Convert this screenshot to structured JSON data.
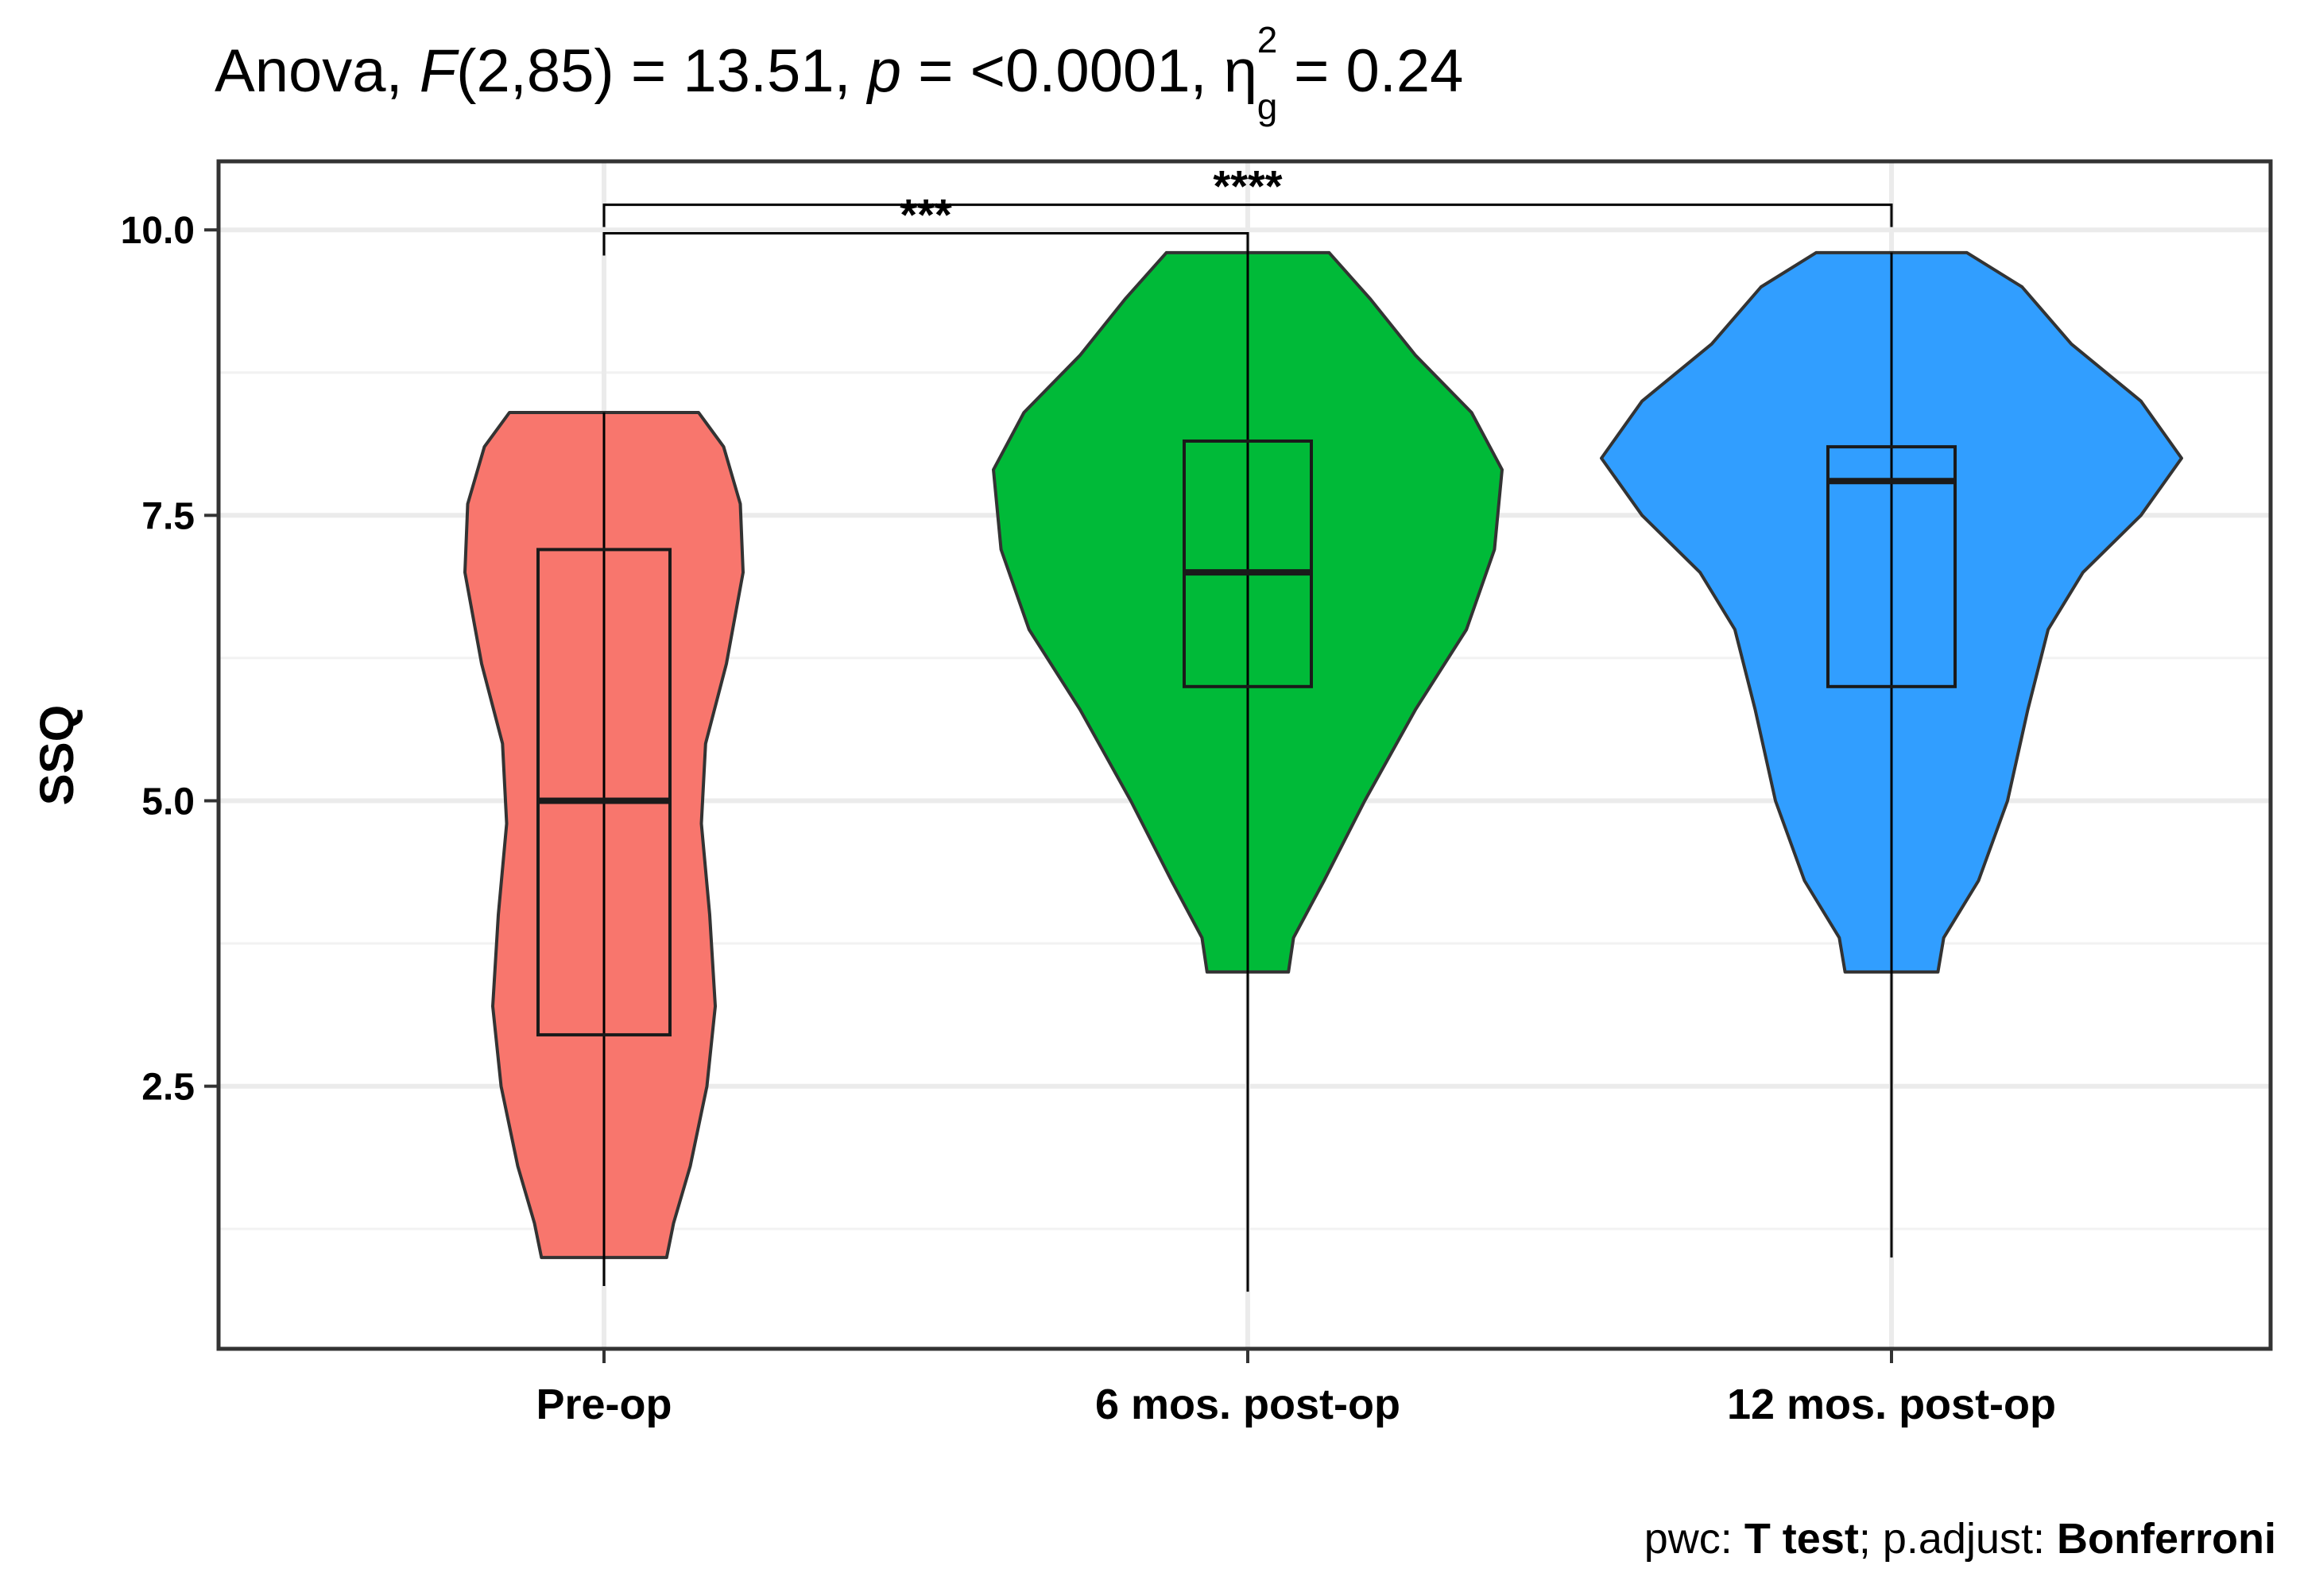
{
  "chart_data": {
    "type": "violin",
    "title": {
      "test": "Anova,",
      "f_symbol": "F",
      "f_args": "(2,85) = 13.51,",
      "p_symbol": "p",
      "p_value": "= <0.0001,",
      "eta_symbol": "η",
      "eta_sup": "2",
      "eta_sub": "g",
      "eta_value": "= 0.24"
    },
    "ylabel": "SSQ",
    "xlabel": "",
    "ylim": [
      0.2,
      10.6
    ],
    "yticks": [
      2.5,
      5.0,
      7.5,
      10.0
    ],
    "ytick_labels": [
      "2.5",
      "5.0",
      "7.5",
      "10.0"
    ],
    "grid": true,
    "categories": [
      "Pre-op",
      "6 mos. post-op",
      "12 mos. post-op"
    ],
    "colors": [
      "#F8766D",
      "#00BA38",
      "#319EFF"
    ],
    "boxes": [
      {
        "q1": 2.95,
        "median": 5.0,
        "q3": 7.2,
        "whisker_low": 0.75,
        "whisker_high": 8.4
      },
      {
        "q1": 6.0,
        "median": 7.0,
        "q3": 8.15,
        "whisker_low": 0.7,
        "whisker_high": 9.8
      },
      {
        "q1": 6.0,
        "median": 7.8,
        "q3": 8.1,
        "whisker_low": 1.0,
        "whisker_high": 9.8
      }
    ],
    "violins": [
      {
        "min": 1.0,
        "max": 8.4,
        "profile": [
          [
            1.0,
            0.45
          ],
          [
            1.3,
            0.5
          ],
          [
            1.8,
            0.62
          ],
          [
            2.5,
            0.74
          ],
          [
            3.2,
            0.8
          ],
          [
            4.0,
            0.76
          ],
          [
            4.8,
            0.7
          ],
          [
            5.5,
            0.73
          ],
          [
            6.2,
            0.88
          ],
          [
            7.0,
            1.0
          ],
          [
            7.6,
            0.98
          ],
          [
            8.1,
            0.86
          ],
          [
            8.4,
            0.68
          ]
        ]
      },
      {
        "min": 3.5,
        "max": 9.8,
        "profile": [
          [
            3.5,
            0.16
          ],
          [
            3.8,
            0.18
          ],
          [
            4.3,
            0.3
          ],
          [
            5.0,
            0.46
          ],
          [
            5.8,
            0.66
          ],
          [
            6.5,
            0.86
          ],
          [
            7.2,
            0.97
          ],
          [
            7.9,
            1.0
          ],
          [
            8.4,
            0.88
          ],
          [
            8.9,
            0.66
          ],
          [
            9.4,
            0.48
          ],
          [
            9.8,
            0.32
          ]
        ]
      },
      {
        "min": 3.5,
        "max": 9.8,
        "profile": [
          [
            3.5,
            0.16
          ],
          [
            3.8,
            0.18
          ],
          [
            4.3,
            0.3
          ],
          [
            5.0,
            0.4
          ],
          [
            5.8,
            0.47
          ],
          [
            6.5,
            0.54
          ],
          [
            7.0,
            0.66
          ],
          [
            7.5,
            0.86
          ],
          [
            8.0,
            1.0
          ],
          [
            8.5,
            0.86
          ],
          [
            9.0,
            0.62
          ],
          [
            9.5,
            0.45
          ],
          [
            9.8,
            0.26
          ]
        ]
      }
    ],
    "brackets": [
      {
        "from": 0,
        "to": 1,
        "y": 9.97,
        "label": "***"
      },
      {
        "from": 0,
        "to": 2,
        "y": 10.22,
        "label": "****"
      }
    ]
  },
  "caption": {
    "pwc_label": "pwc:",
    "pwc_value": "T test",
    "adjust_label": "; p.adjust:",
    "adjust_value": "Bonferroni"
  }
}
